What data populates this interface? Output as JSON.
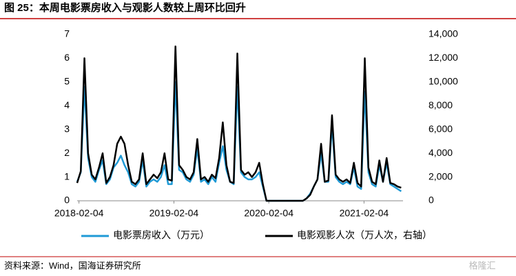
{
  "title": "图 25：本周电影票房收入与观影人数较上周环比回升",
  "source": "资料来源：Wind，国海证券研究所",
  "watermark": "格隆汇",
  "chart_data": {
    "type": "line",
    "x": [
      "2018-01-28",
      "2018-02-11",
      "2018-02-25",
      "2018-03-11",
      "2018-03-25",
      "2018-04-08",
      "2018-04-22",
      "2018-05-06",
      "2018-05-20",
      "2018-06-03",
      "2018-06-17",
      "2018-07-01",
      "2018-07-15",
      "2018-07-29",
      "2018-08-12",
      "2018-08-26",
      "2018-09-09",
      "2018-09-23",
      "2018-10-07",
      "2018-10-21",
      "2018-11-04",
      "2018-11-18",
      "2018-12-02",
      "2018-12-16",
      "2018-12-30",
      "2019-01-13",
      "2019-01-27",
      "2019-02-10",
      "2019-02-24",
      "2019-03-10",
      "2019-03-24",
      "2019-04-07",
      "2019-04-21",
      "2019-05-05",
      "2019-05-19",
      "2019-06-02",
      "2019-06-16",
      "2019-06-30",
      "2019-07-14",
      "2019-07-28",
      "2019-08-11",
      "2019-08-25",
      "2019-09-08",
      "2019-09-22",
      "2019-10-06",
      "2019-10-20",
      "2019-11-03",
      "2019-11-17",
      "2019-12-01",
      "2019-12-15",
      "2019-12-29",
      "2020-01-12",
      "2020-01-26",
      "2020-02-09",
      "2020-02-23",
      "2020-03-08",
      "2020-03-22",
      "2020-04-05",
      "2020-04-19",
      "2020-05-03",
      "2020-05-17",
      "2020-05-31",
      "2020-06-14",
      "2020-06-28",
      "2020-07-12",
      "2020-07-26",
      "2020-08-09",
      "2020-08-23",
      "2020-09-06",
      "2020-09-20",
      "2020-10-04",
      "2020-10-18",
      "2020-11-01",
      "2020-11-15",
      "2020-11-29",
      "2020-12-13",
      "2020-12-27",
      "2021-01-10",
      "2021-01-24",
      "2021-02-07",
      "2021-02-21",
      "2021-03-07",
      "2021-03-21",
      "2021-04-04",
      "2021-04-18",
      "2021-05-02",
      "2021-05-16",
      "2021-05-30",
      "2021-06-13",
      "2021-06-27"
    ],
    "series": [
      {
        "name": "电影票房收入（万元）",
        "color": "#1f9ad6",
        "values": [
          0.8,
          1.2,
          4.8,
          1.8,
          1.0,
          0.8,
          1.3,
          1.7,
          0.7,
          0.9,
          1.4,
          1.6,
          1.9,
          1.5,
          1.2,
          0.7,
          0.6,
          0.8,
          1.7,
          0.6,
          0.8,
          0.9,
          0.8,
          1.0,
          1.5,
          0.7,
          0.7,
          5.0,
          1.3,
          1.2,
          0.9,
          0.8,
          1.1,
          2.2,
          0.8,
          0.9,
          0.7,
          1.0,
          0.8,
          1.6,
          2.3,
          1.3,
          0.8,
          0.7,
          4.8,
          1.2,
          1.0,
          0.9,
          0.9,
          1.0,
          1.2,
          0.6,
          0,
          0,
          0,
          0,
          0,
          0,
          0,
          0,
          0,
          0,
          0,
          0.1,
          0.3,
          0.6,
          0.9,
          2.0,
          0.8,
          0.8,
          3.2,
          1.0,
          0.8,
          0.7,
          0.8,
          0.7,
          1.4,
          0.6,
          0.5,
          4.6,
          1.2,
          0.7,
          0.6,
          1.5,
          0.8,
          1.6,
          0.7,
          0.6,
          0.5,
          0.4
        ]
      },
      {
        "name": "电影观影人次（万人次，右轴）",
        "color": "#000000",
        "axis": "y2",
        "values": [
          1500,
          2500,
          12000,
          4000,
          2200,
          1800,
          2800,
          4000,
          1500,
          2000,
          3000,
          4800,
          5400,
          4800,
          3000,
          1600,
          1400,
          1800,
          4000,
          1400,
          1800,
          2200,
          1900,
          2400,
          4000,
          1800,
          1700,
          13000,
          3000,
          2600,
          2000,
          1800,
          2400,
          5200,
          1800,
          2000,
          1600,
          2200,
          1900,
          3600,
          6600,
          3000,
          1600,
          1500,
          12400,
          2600,
          2200,
          2400,
          2000,
          2400,
          3200,
          1400,
          0,
          0,
          0,
          0,
          0,
          0,
          0,
          0,
          0,
          0,
          0,
          200,
          500,
          1200,
          1800,
          4800,
          1600,
          1700,
          7200,
          2200,
          1800,
          1600,
          1800,
          1500,
          3200,
          1500,
          1200,
          12000,
          2800,
          1600,
          1400,
          3400,
          1600,
          3600,
          1500,
          1400,
          1200,
          1100
        ]
      }
    ],
    "xlim": [
      "2018-01-28",
      "2021-07-04"
    ],
    "xticks": [
      "2018-02-04",
      "2019-02-04",
      "2020-02-04",
      "2021-02-04"
    ],
    "ylim": [
      0,
      7
    ],
    "yticks": [
      0,
      1,
      2,
      3,
      4,
      5,
      6,
      7
    ],
    "y2lim": [
      0,
      14000
    ],
    "y2ticks": [
      0,
      {
        "value": 2000,
        "label": "2,000"
      },
      {
        "value": 4000,
        "label": "4,000"
      },
      {
        "value": 6000,
        "label": "6,000"
      },
      {
        "value": 8000,
        "label": "8,000"
      },
      {
        "value": 10000,
        "label": "10,000"
      },
      {
        "value": 12000,
        "label": "12,000"
      },
      {
        "value": 14000,
        "label": "14,000"
      }
    ],
    "legend": "bottom"
  }
}
